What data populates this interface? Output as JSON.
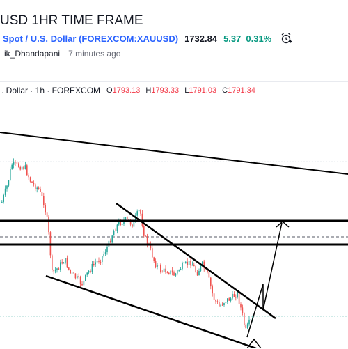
{
  "idea": {
    "title": "USD 1HR TIME FRAME",
    "symbol_name": "Spot / U.S. Dollar (FOREXCOM:XAUUSD)",
    "price": "1732.84",
    "change": "5.37",
    "change_percent": "0.31%",
    "author": "ik_Dhandapani",
    "posted": "7 minutes ago"
  },
  "legend": {
    "title": ". Dollar · 1h · FOREXCOM",
    "o_label": "O",
    "o_value": "1793.13",
    "h_label": "H",
    "h_value": "1793.33",
    "l_label": "L",
    "l_value": "1791.03",
    "c_label": "C",
    "c_value": "1791.34"
  },
  "colors": {
    "up": "#26a69a",
    "down": "#ef5350",
    "link": "#2962ff",
    "positive": "#089981"
  },
  "icons": {
    "alert": "alarm-clock-plus-icon"
  }
}
